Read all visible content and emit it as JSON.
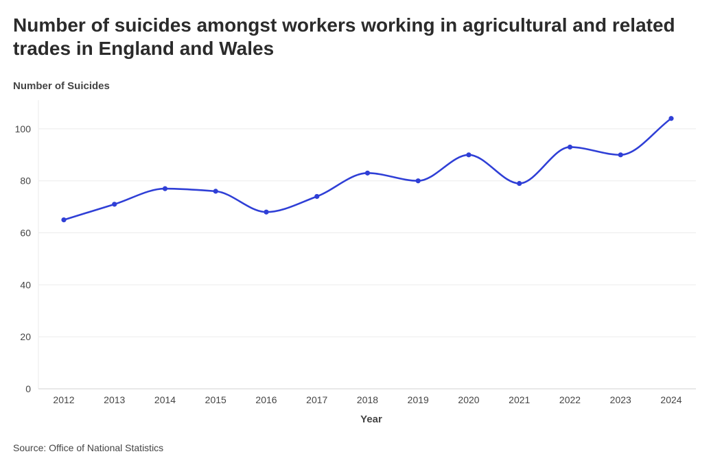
{
  "title": "Number of suicides amongst workers working in agricultural and related trades in England and Wales",
  "source": "Source: Office of National Statistics",
  "chart_data": {
    "type": "line",
    "title": "Number of suicides amongst workers working in agricultural and related trades in England and Wales",
    "xlabel": "Year",
    "ylabel": "Number of Suicides",
    "categories": [
      "2012",
      "2013",
      "2014",
      "2015",
      "2016",
      "2017",
      "2018",
      "2019",
      "2020",
      "2021",
      "2022",
      "2023",
      "2024"
    ],
    "series": [
      {
        "values": [
          65,
          71,
          77,
          76,
          68,
          74,
          83,
          80,
          90,
          79,
          93,
          90,
          104
        ]
      }
    ],
    "yticks": [
      0,
      20,
      40,
      60,
      80,
      100
    ],
    "ylim": [
      0,
      110
    ],
    "grid": true,
    "legend": "none",
    "line_color": "#2f3fd6",
    "grid_color": "#ebebeb",
    "axis_color": "#d0d0d0"
  }
}
